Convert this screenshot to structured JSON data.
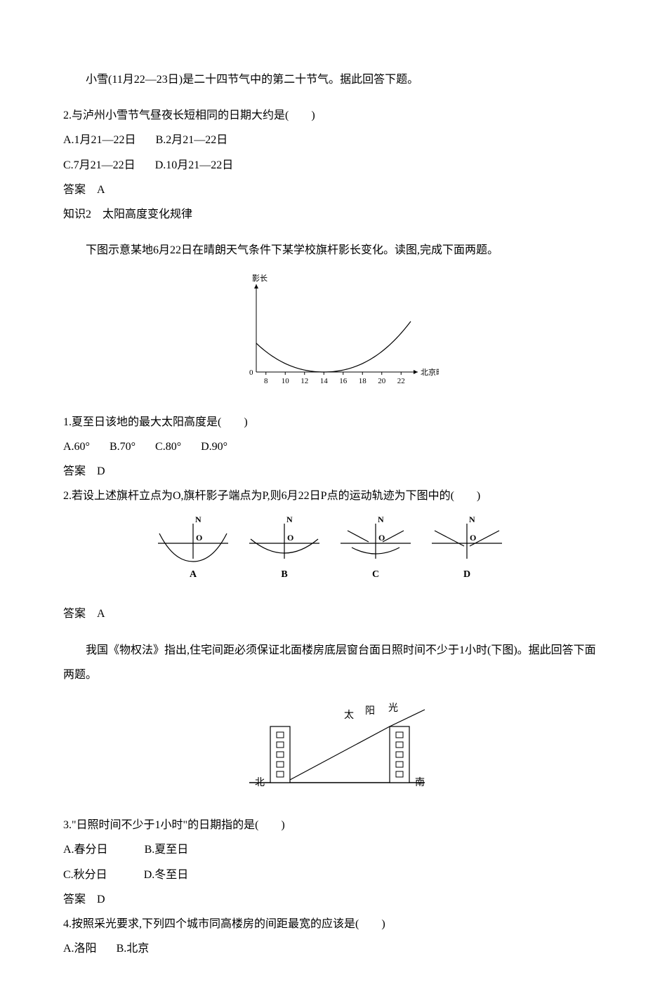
{
  "intro1": "小雪(11月22—23日)是二十四节气中的第二十节气。据此回答下题。",
  "q2a": {
    "stem": "2.与泸州小雪节气昼夜长短相同的日期大约是(　　)",
    "optA": "A.1月21—22日",
    "optB": "B.2月21—22日",
    "optC": "C.7月21—22日",
    "optD": "D.10月21—22日",
    "answer": "答案　A"
  },
  "heading": "知识2　太阳高度变化规律",
  "intro2": "下图示意某地6月22日在晴朗天气条件下某学校旗杆影长变化。读图,完成下面两题。",
  "chart1": {
    "ylabel": "影长",
    "xlabel": "北京时间",
    "xticks": [
      "8",
      "10",
      "12",
      "14",
      "16",
      "18",
      "20",
      "22"
    ],
    "xmin": 7,
    "xmax": 23,
    "minimum_x": 14,
    "curve_color": "#000000",
    "curve_width": 1.2,
    "axis_color": "#000000",
    "background": "#ffffff",
    "font_size": 11
  },
  "q1b": {
    "stem": "1.夏至日该地的最大太阳高度是(　　)",
    "optA": "A.60°",
    "optB": "B.70°",
    "optC": "C.80°",
    "optD": "D.90°",
    "answer": "答案　D"
  },
  "q2b": {
    "stem": "2.若设上述旗杆立点为O,旗杆影子端点为P,则6月22日P点的运动轨迹为下图中的(　　)",
    "answer": "答案　A"
  },
  "diagramABCD": {
    "labels": [
      "A",
      "B",
      "C",
      "D"
    ],
    "N": "N",
    "O": "O",
    "stroke": "#000000",
    "stroke_width": 1.2,
    "background": "#ffffff"
  },
  "intro3": "我国《物权法》指出,住宅间距必须保证北面楼房底层窗台面日照时间不少于1小时(下图)。据此回答下面两题。",
  "building_diagram": {
    "sun_label": "太",
    "sun_label2": "阳",
    "light_label": "光",
    "north": "北",
    "south": "南",
    "stroke": "#000000",
    "building_fill": "#ffffff",
    "windows_per_building": 5
  },
  "q3": {
    "stem": "3.\"日照时间不少于1小时\"的日期指的是(　　)",
    "optA": "A.春分日",
    "optB": "B.夏至日",
    "optC": "C.秋分日",
    "optD": "D.冬至日",
    "answer": "答案　D"
  },
  "q4": {
    "stem": "4.按照采光要求,下列四个城市同高楼房的间距最宽的应该是(　　)",
    "optA": "A.洛阳",
    "optB": "B.北京"
  }
}
